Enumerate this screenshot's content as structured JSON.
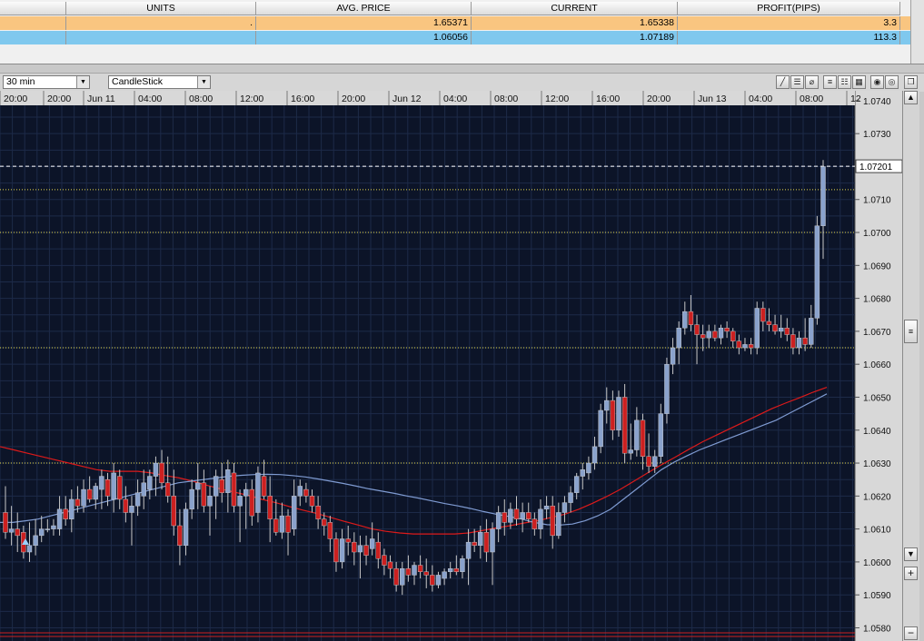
{
  "positions": {
    "headers": [
      "",
      "UNITS",
      "AVG. PRICE",
      "CURRENT",
      "PROFIT(PIPS)"
    ],
    "rows": [
      {
        "units": ".",
        "avg_price": "1.65371",
        "current": "1.65338",
        "profit": "3.3",
        "color": "#f9c580"
      },
      {
        "units": "",
        "avg_price": "1.06056",
        "current": "1.07189",
        "profit": "113.3",
        "color": "#7fc8ee"
      }
    ]
  },
  "toolbar": {
    "timeframe": "30 min",
    "chart_type": "CandleStick",
    "icons": [
      "line-tool-icon",
      "horizontal-lines-icon",
      "fib-icon",
      "grid-lines-icon",
      "grid-dense-icon",
      "grid-full-icon",
      "record-icon",
      "settings-icon",
      "restore-window-icon"
    ]
  },
  "scroll": {
    "up": "▲",
    "down": "▼",
    "zoom_in": "+",
    "zoom_out": "−",
    "grip": "≡"
  },
  "chart_data": {
    "type": "candlestick",
    "time_labels": [
      "20:00",
      "20:00",
      "Jun 11",
      "04:00",
      "08:00",
      "12:00",
      "16:00",
      "20:00",
      "Jun 12",
      "04:00",
      "08:00",
      "12:00",
      "16:00",
      "20:00",
      "Jun 13",
      "04:00",
      "08:00",
      "12"
    ],
    "price_labels": [
      "1.0740",
      "1.0730",
      "1.0710",
      "1.0700",
      "1.0690",
      "1.0680",
      "1.0670",
      "1.0660",
      "1.0650",
      "1.0640",
      "1.0630",
      "1.0620",
      "1.0610",
      "1.0600",
      "1.0590",
      "1.0580"
    ],
    "ylim": [
      1.0576,
      1.0743
    ],
    "current_price_label": "1.07201",
    "current_price": 1.07201,
    "horizontal_levels": [
      1.0713,
      1.07,
      1.0665,
      1.063
    ],
    "colors": {
      "background": "#0c1428",
      "bull": "#8aa2cc",
      "bear": "#cc2020",
      "ma_fast": "#7f9bd2",
      "ma_slow": "#dd1a1a",
      "level": "#e6d84a",
      "grid": "#1d2a48"
    },
    "candles": [
      [
        1.0615,
        1.0623,
        1.0607,
        1.0609
      ],
      [
        1.0609,
        1.0617,
        1.0605,
        1.061
      ],
      [
        1.061,
        1.0615,
        1.0603,
        1.0608
      ],
      [
        1.0609,
        1.0611,
        1.0601,
        1.0603
      ],
      [
        1.0603,
        1.0612,
        1.06,
        1.0605
      ],
      [
        1.0605,
        1.0613,
        1.0602,
        1.0608
      ],
      [
        1.0608,
        1.0614,
        1.0606,
        1.061
      ],
      [
        1.061,
        1.0613,
        1.0609,
        1.061
      ],
      [
        1.061,
        1.0613,
        1.0608,
        1.0611
      ],
      [
        1.061,
        1.062,
        1.0608,
        1.0616
      ],
      [
        1.0616,
        1.062,
        1.0611,
        1.0613
      ],
      [
        1.0613,
        1.0622,
        1.0609,
        1.0619
      ],
      [
        1.0619,
        1.0623,
        1.0615,
        1.0617
      ],
      [
        1.0617,
        1.0625,
        1.0615,
        1.0622
      ],
      [
        1.0622,
        1.0626,
        1.0618,
        1.0619
      ],
      [
        1.0619,
        1.0624,
        1.0616,
        1.0623
      ],
      [
        1.0622,
        1.0628,
        1.0616,
        1.0626
      ],
      [
        1.0625,
        1.0627,
        1.0617,
        1.062
      ],
      [
        1.0619,
        1.063,
        1.0615,
        1.0627
      ],
      [
        1.0626,
        1.0628,
        1.0616,
        1.0619
      ],
      [
        1.0619,
        1.0623,
        1.0612,
        1.0615
      ],
      [
        1.0615,
        1.062,
        1.0605,
        1.0617
      ],
      [
        1.0617,
        1.0625,
        1.0614,
        1.0621
      ],
      [
        1.062,
        1.0628,
        1.0616,
        1.0624
      ],
      [
        1.0622,
        1.0628,
        1.0619,
        1.0626
      ],
      [
        1.0626,
        1.0632,
        1.062,
        1.063
      ],
      [
        1.063,
        1.0634,
        1.0622,
        1.0624
      ],
      [
        1.0624,
        1.0632,
        1.0618,
        1.062
      ],
      [
        1.062,
        1.0628,
        1.0608,
        1.0611
      ],
      [
        1.0611,
        1.0616,
        1.0599,
        1.0605
      ],
      [
        1.0605,
        1.0618,
        1.0602,
        1.0616
      ],
      [
        1.0616,
        1.0625,
        1.0613,
        1.0622
      ],
      [
        1.0622,
        1.063,
        1.0616,
        1.0624
      ],
      [
        1.0624,
        1.0628,
        1.0615,
        1.0617
      ],
      [
        1.0617,
        1.0623,
        1.0608,
        1.062
      ],
      [
        1.062,
        1.0628,
        1.0613,
        1.0626
      ],
      [
        1.0625,
        1.063,
        1.0618,
        1.0621
      ],
      [
        1.0621,
        1.0631,
        1.0615,
        1.0628
      ],
      [
        1.0627,
        1.063,
        1.0615,
        1.0617
      ],
      [
        1.0617,
        1.0622,
        1.0606,
        1.062
      ],
      [
        1.062,
        1.0624,
        1.061,
        1.0622
      ],
      [
        1.0622,
        1.0625,
        1.0611,
        1.0614
      ],
      [
        1.0615,
        1.0629,
        1.0612,
        1.0627
      ],
      [
        1.0626,
        1.0631,
        1.0619,
        1.062
      ],
      [
        1.062,
        1.0626,
        1.0606,
        1.0613
      ],
      [
        1.0613,
        1.0619,
        1.0608,
        1.0609
      ],
      [
        1.0609,
        1.0618,
        1.0607,
        1.0614
      ],
      [
        1.0614,
        1.0616,
        1.0602,
        1.0609
      ],
      [
        1.061,
        1.0625,
        1.0608,
        1.062
      ],
      [
        1.062,
        1.0625,
        1.0617,
        1.0623
      ],
      [
        1.0622,
        1.0624,
        1.0618,
        1.062
      ],
      [
        1.062,
        1.0622,
        1.0615,
        1.0617
      ],
      [
        1.0617,
        1.062,
        1.061,
        1.0613
      ],
      [
        1.0613,
        1.0615,
        1.0608,
        1.0611
      ],
      [
        1.0612,
        1.0614,
        1.0603,
        1.0607
      ],
      [
        1.0607,
        1.0609,
        1.0597,
        1.06
      ],
      [
        1.06,
        1.061,
        1.0598,
        1.0607
      ],
      [
        1.0607,
        1.0611,
        1.0602,
        1.0606
      ],
      [
        1.0606,
        1.0609,
        1.0599,
        1.0603
      ],
      [
        1.0603,
        1.0608,
        1.0595,
        1.0605
      ],
      [
        1.0605,
        1.0608,
        1.0599,
        1.0602
      ],
      [
        1.0604,
        1.0612,
        1.0602,
        1.0607
      ],
      [
        1.0606,
        1.0609,
        1.0598,
        1.0601
      ],
      [
        1.0602,
        1.0604,
        1.0596,
        1.0599
      ],
      [
        1.06,
        1.0602,
        1.0595,
        1.0598
      ],
      [
        1.0598,
        1.06,
        1.0591,
        1.0593
      ],
      [
        1.0593,
        1.06,
        1.059,
        1.0598
      ],
      [
        1.0598,
        1.0602,
        1.0594,
        1.0596
      ],
      [
        1.0596,
        1.06,
        1.0593,
        1.0599
      ],
      [
        1.0599,
        1.0602,
        1.0595,
        1.0597
      ],
      [
        1.0597,
        1.0601,
        1.0592,
        1.0596
      ],
      [
        1.0596,
        1.0599,
        1.0591,
        1.0593
      ],
      [
        1.0593,
        1.0597,
        1.0592,
        1.0596
      ],
      [
        1.0595,
        1.0598,
        1.0593,
        1.0597
      ],
      [
        1.0597,
        1.06,
        1.0595,
        1.0598
      ],
      [
        1.0598,
        1.0602,
        1.0596,
        1.0597
      ],
      [
        1.0597,
        1.0602,
        1.0595,
        1.0601
      ],
      [
        1.0601,
        1.061,
        1.0593,
        1.0606
      ],
      [
        1.0606,
        1.061,
        1.0603,
        1.0605
      ],
      [
        1.0605,
        1.0611,
        1.0601,
        1.0609
      ],
      [
        1.0609,
        1.0613,
        1.06,
        1.0603
      ],
      [
        1.0603,
        1.0612,
        1.0593,
        1.061
      ],
      [
        1.061,
        1.0617,
        1.0606,
        1.0615
      ],
      [
        1.0615,
        1.0619,
        1.0608,
        1.0612
      ],
      [
        1.0612,
        1.0618,
        1.061,
        1.0616
      ],
      [
        1.0616,
        1.062,
        1.0611,
        1.0613
      ],
      [
        1.0613,
        1.0618,
        1.0609,
        1.0615
      ],
      [
        1.0615,
        1.0618,
        1.0612,
        1.0613
      ],
      [
        1.0613,
        1.0615,
        1.0608,
        1.061
      ],
      [
        1.061,
        1.0619,
        1.0607,
        1.0616
      ],
      [
        1.0616,
        1.062,
        1.0613,
        1.0617
      ],
      [
        1.0617,
        1.062,
        1.0604,
        1.0608
      ],
      [
        1.0608,
        1.0618,
        1.0607,
        1.0615
      ],
      [
        1.0615,
        1.062,
        1.0612,
        1.0618
      ],
      [
        1.0618,
        1.0623,
        1.0615,
        1.0621
      ],
      [
        1.0621,
        1.0627,
        1.0619,
        1.0626
      ],
      [
        1.0626,
        1.063,
        1.0622,
        1.0628
      ],
      [
        1.0627,
        1.0632,
        1.0625,
        1.063
      ],
      [
        1.063,
        1.0638,
        1.0628,
        1.0635
      ],
      [
        1.0635,
        1.0648,
        1.0633,
        1.0646
      ],
      [
        1.0646,
        1.0653,
        1.0642,
        1.0649
      ],
      [
        1.0649,
        1.0652,
        1.0637,
        1.064
      ],
      [
        1.064,
        1.0652,
        1.0638,
        1.065
      ],
      [
        1.065,
        1.0654,
        1.063,
        1.0633
      ],
      [
        1.0633,
        1.0642,
        1.0631,
        1.0634
      ],
      [
        1.0634,
        1.0647,
        1.0632,
        1.0643
      ],
      [
        1.0643,
        1.0645,
        1.0628,
        1.0632
      ],
      [
        1.0632,
        1.0639,
        1.0627,
        1.0629
      ],
      [
        1.0629,
        1.0634,
        1.0627,
        1.0632
      ],
      [
        1.0632,
        1.0648,
        1.063,
        1.0645
      ],
      [
        1.0645,
        1.0662,
        1.0642,
        1.066
      ],
      [
        1.066,
        1.0668,
        1.0657,
        1.0665
      ],
      [
        1.0665,
        1.0673,
        1.066,
        1.0671
      ],
      [
        1.0671,
        1.0679,
        1.0669,
        1.0676
      ],
      [
        1.0676,
        1.0681,
        1.067,
        1.0672
      ],
      [
        1.0672,
        1.0675,
        1.066,
        1.0669
      ],
      [
        1.0669,
        1.0672,
        1.0664,
        1.0668
      ],
      [
        1.0668,
        1.0672,
        1.0665,
        1.067
      ],
      [
        1.067,
        1.0672,
        1.0667,
        1.0668
      ],
      [
        1.0668,
        1.0672,
        1.0666,
        1.0671
      ],
      [
        1.0671,
        1.0673,
        1.0668,
        1.067
      ],
      [
        1.067,
        1.0671,
        1.0665,
        1.0667
      ],
      [
        1.0667,
        1.0669,
        1.0663,
        1.0665
      ],
      [
        1.0665,
        1.0668,
        1.0664,
        1.0666
      ],
      [
        1.0666,
        1.0668,
        1.0663,
        1.0665
      ],
      [
        1.0665,
        1.0679,
        1.0663,
        1.0677
      ],
      [
        1.0677,
        1.0679,
        1.067,
        1.0673
      ],
      [
        1.0673,
        1.0677,
        1.067,
        1.0672
      ],
      [
        1.0672,
        1.0675,
        1.0669,
        1.067
      ],
      [
        1.067,
        1.0675,
        1.0668,
        1.0671
      ],
      [
        1.0671,
        1.0674,
        1.0667,
        1.0669
      ],
      [
        1.0669,
        1.0671,
        1.0663,
        1.0665
      ],
      [
        1.0665,
        1.067,
        1.0663,
        1.0668
      ],
      [
        1.0668,
        1.0674,
        1.0664,
        1.0666
      ],
      [
        1.0666,
        1.0678,
        1.0665,
        1.0674
      ],
      [
        1.0674,
        1.0705,
        1.0672,
        1.0702
      ],
      [
        1.0702,
        1.0722,
        1.0692,
        1.072
      ]
    ],
    "ma_fast": [
      1.0612,
      1.0612,
      1.06125,
      1.0613,
      1.0614,
      1.0615,
      1.0616,
      1.0617,
      1.0618,
      1.0619,
      1.062,
      1.0621,
      1.0622,
      1.0623,
      1.0624,
      1.06245,
      1.0625,
      1.06255,
      1.0626,
      1.06263,
      1.06265,
      1.06266,
      1.06265,
      1.06262,
      1.06258,
      1.06252,
      1.06245,
      1.06238,
      1.0623,
      1.06222,
      1.06215,
      1.06208,
      1.062,
      1.06193,
      1.06185,
      1.06177,
      1.0617,
      1.06162,
      1.06153,
      1.06145,
      1.06138,
      1.0613,
      1.0612,
      1.06113,
      1.06112,
      1.06115,
      1.06125,
      1.0614,
      1.0616,
      1.0619,
      1.0622,
      1.0625,
      1.0628,
      1.06303,
      1.06322,
      1.0634,
      1.06355,
      1.0637,
      1.06385,
      1.064,
      1.06415,
      1.0643,
      1.0645,
      1.0647,
      1.0649,
      1.0651
    ],
    "ma_slow": [
      1.0635,
      1.0634,
      1.0633,
      1.0632,
      1.0631,
      1.063,
      1.0629,
      1.0628,
      1.06275,
      1.06275,
      1.06275,
      1.0627,
      1.06262,
      1.06255,
      1.06245,
      1.06233,
      1.06222,
      1.06212,
      1.06202,
      1.0619,
      1.0618,
      1.06168,
      1.06157,
      1.06147,
      1.06135,
      1.06123,
      1.06112,
      1.061,
      1.06093,
      1.06088,
      1.06085,
      1.06085,
      1.06085,
      1.06085,
      1.06088,
      1.06095,
      1.06103,
      1.0611,
      1.06118,
      1.06125,
      1.06135,
      1.06145,
      1.0616,
      1.06178,
      1.06198,
      1.0622,
      1.06245,
      1.0627,
      1.06295,
      1.06318,
      1.06342,
      1.06365,
      1.06385,
      1.06405,
      1.06425,
      1.06445,
      1.06465,
      1.06482,
      1.06498,
      1.06515,
      1.0653
    ]
  }
}
